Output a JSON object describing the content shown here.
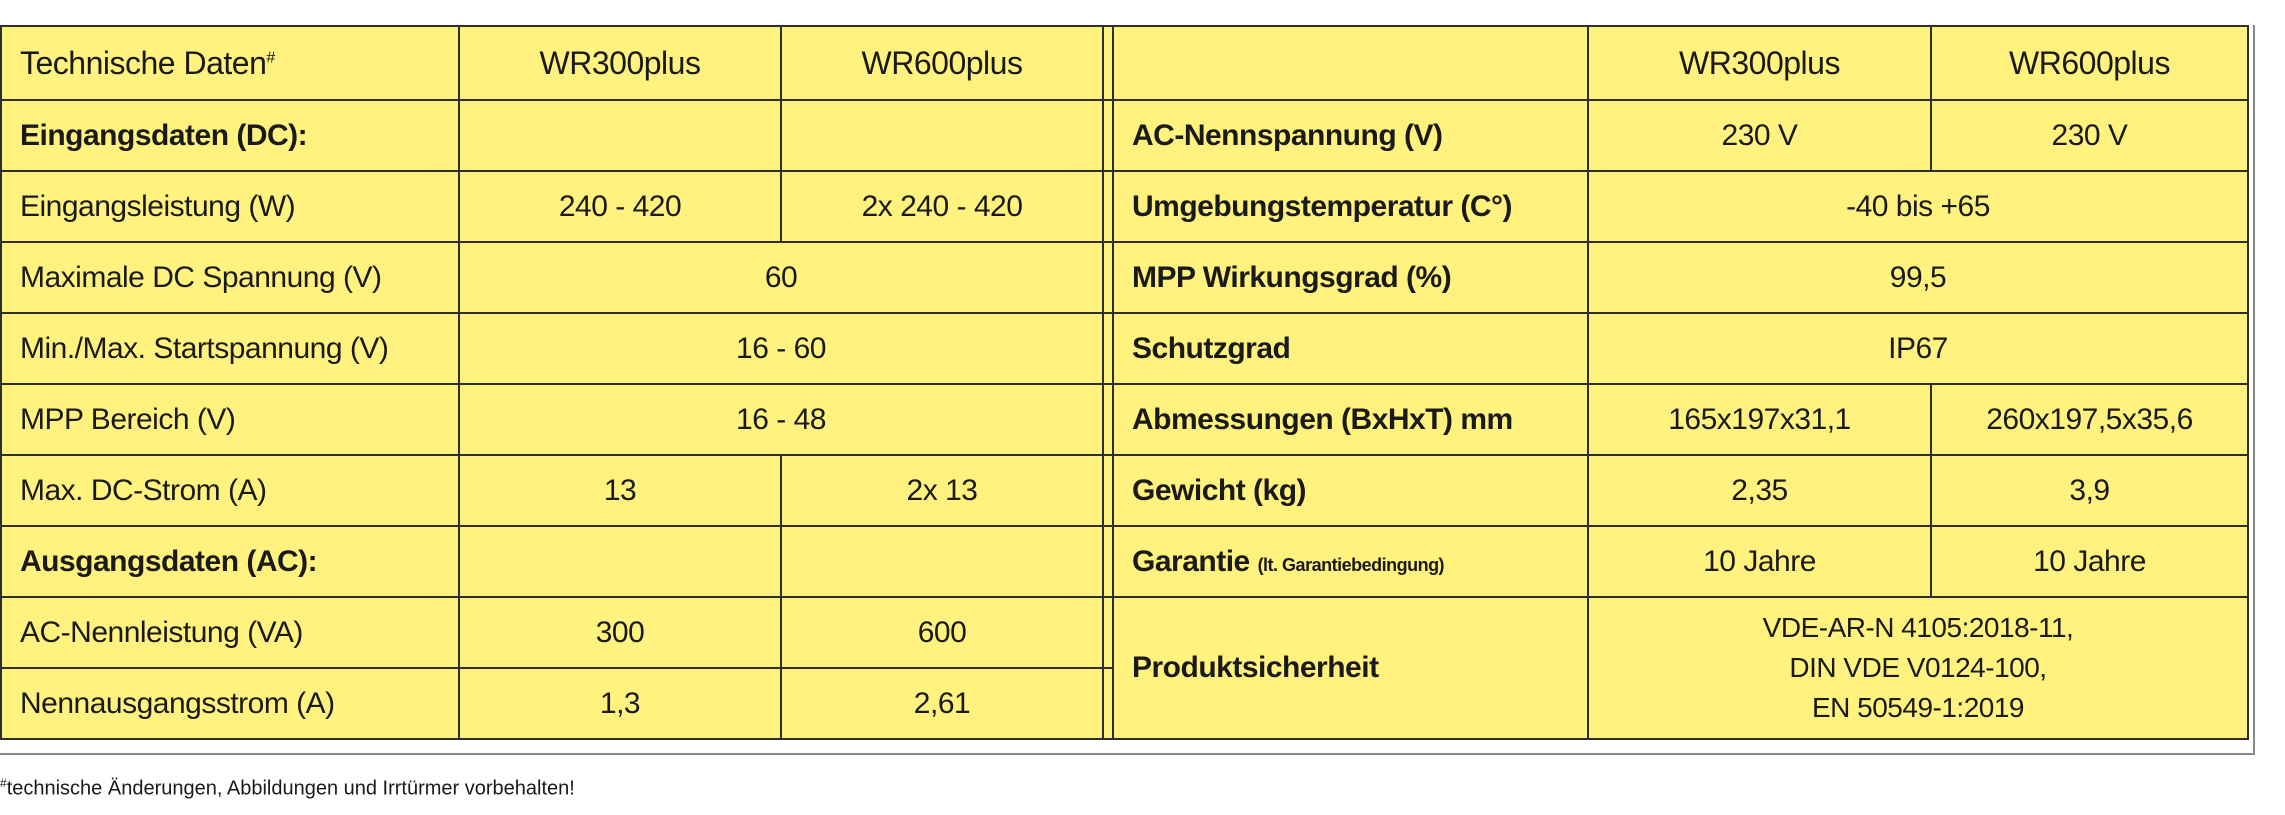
{
  "header": {
    "title": "Technische Daten",
    "title_mark": "#",
    "col_a": "WR300plus",
    "col_b": "WR600plus",
    "right_col_a": "WR300plus",
    "right_col_b": "WR600plus"
  },
  "left": {
    "section_dc": "Eingangsdaten (DC):",
    "rows_dc": [
      {
        "label": "Eingangsleistung (W)",
        "a": "240 - 420",
        "b": "2x 240 - 420"
      },
      {
        "label": "Maximale DC Spannung (V)",
        "both": "60"
      },
      {
        "label": "Min./Max. Startspannung (V)",
        "both": "16 - 60"
      },
      {
        "label": "MPP Bereich (V)",
        "both": "16 - 48"
      },
      {
        "label": "Max. DC-Strom (A)",
        "a": "13",
        "b": "2x 13"
      }
    ],
    "section_ac": "Ausgangsdaten (AC):",
    "rows_ac": [
      {
        "label": "AC-Nennleistung (VA)",
        "a": "300",
        "b": "600"
      },
      {
        "label": "Nennausgangsstrom (A)",
        "a": "1,3",
        "b": "2,61"
      }
    ]
  },
  "right": {
    "rows": [
      {
        "label": "AC-Nennspannung (V)",
        "a": "230 V",
        "b": "230 V"
      },
      {
        "label": "Umgebungstemperatur (C°)",
        "both": "-40 bis +65"
      },
      {
        "label": "MPP Wirkungsgrad (%)",
        "both": "99,5"
      },
      {
        "label": "Schutzgrad",
        "both": "IP67"
      },
      {
        "label": "Abmessungen (BxHxT) mm",
        "a": "165x197x31,1",
        "b": "260x197,5x35,6"
      },
      {
        "label": "Gewicht (kg)",
        "a": "2,35",
        "b": "3,9"
      },
      {
        "label": "Garantie",
        "note": "(lt. Garantiebedingung)",
        "a": "10 Jahre",
        "b": "10 Jahre"
      }
    ],
    "safety": {
      "label": "Produktsicherheit",
      "lines": [
        "VDE-AR-N 4105:2018-11,",
        "DIN VDE V0124-100,",
        "EN 50549-1:2019"
      ]
    }
  },
  "footnote": {
    "mark": "#",
    "text": "technische Änderungen, Abbildungen und Irrtürmer vorbehalten!"
  },
  "colors": {
    "cell_background": "#FFF27F",
    "border": "#2E2E2E"
  }
}
